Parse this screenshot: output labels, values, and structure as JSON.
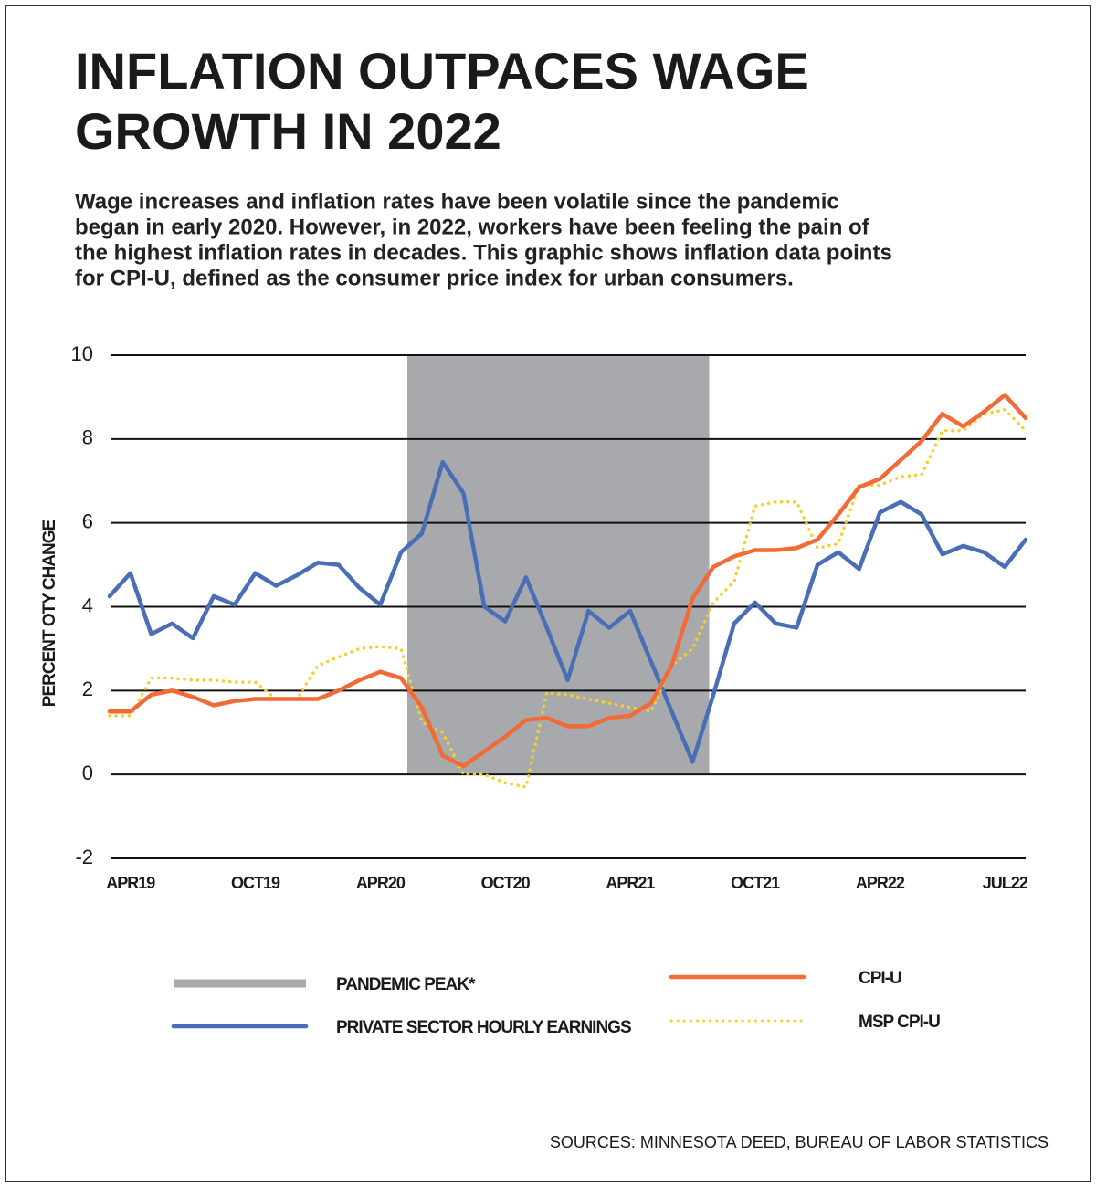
{
  "title": [
    "INFLATION OUTPACES WAGE",
    "GROWTH IN 2022"
  ],
  "subtitle": [
    "Wage increases and inflation rates have been volatile since the pandemic",
    "began in early 2020. However, in 2022, workers have been feeling the pain of",
    "the highest inflation rates in decades. This graphic shows inflation data points",
    "for CPI-U, defined as the consumer price index for urban consumers."
  ],
  "source": "SOURCES: MINNESOTA DEED, BUREAU OF LABOR STATISTICS",
  "chart_data": {
    "type": "line",
    "y_label": "PERCENT OTY CHANGE",
    "categories": [
      null,
      "APR19",
      null,
      null,
      null,
      null,
      null,
      "OCT19",
      null,
      null,
      null,
      null,
      null,
      "APR20",
      null,
      null,
      null,
      null,
      null,
      "OCT20",
      null,
      null,
      null,
      null,
      null,
      "APR21",
      null,
      null,
      null,
      null,
      null,
      "OCT21",
      null,
      null,
      null,
      null,
      null,
      "APR22",
      null,
      null,
      null,
      null,
      null,
      "JUL22",
      null
    ],
    "band": {
      "name": "PANDEMIC PEAK*",
      "color": "#a7a9ac",
      "from": 14.3,
      "to": 28.8
    },
    "series": [
      {
        "name": "PRIVATE SECTOR HOURLY EARNINGS",
        "color": "#4a6eb5",
        "style": "solid",
        "values": [
          4.25,
          4.8,
          3.35,
          3.6,
          3.25,
          4.25,
          4.05,
          4.8,
          4.5,
          4.75,
          5.05,
          5.0,
          4.45,
          4.05,
          5.3,
          5.75,
          7.45,
          6.7,
          4.0,
          3.65,
          4.7,
          3.5,
          2.25,
          3.9,
          3.5,
          3.9,
          2.7,
          1.5,
          0.3,
          1.9,
          3.6,
          4.1,
          3.6,
          3.5,
          5.0,
          5.3,
          4.9,
          6.25,
          6.5,
          6.2,
          5.25,
          5.45,
          5.3,
          4.95,
          5.6
        ]
      },
      {
        "name": "MSP CPI-U",
        "color": "#f7cf2a",
        "style": "dotted",
        "values": [
          1.4,
          1.4,
          2.3,
          2.3,
          2.25,
          2.25,
          2.2,
          2.2,
          1.8,
          1.8,
          2.6,
          2.8,
          3.0,
          3.05,
          3.0,
          1.25,
          1.0,
          0.0,
          0.0,
          -0.2,
          -0.3,
          1.95,
          1.9,
          1.8,
          1.7,
          1.6,
          1.5,
          2.6,
          3.0,
          4.1,
          4.6,
          6.4,
          6.5,
          6.5,
          5.4,
          5.5,
          6.9,
          6.9,
          7.1,
          7.15,
          8.2,
          8.2,
          8.6,
          8.7,
          8.2
        ]
      },
      {
        "name": "CPI-U",
        "color": "#f26a36",
        "style": "solid",
        "values": [
          1.5,
          1.5,
          1.9,
          2.0,
          1.85,
          1.65,
          1.75,
          1.8,
          1.8,
          1.8,
          1.8,
          2.0,
          2.25,
          2.45,
          2.3,
          1.6,
          0.45,
          0.2,
          0.55,
          0.9,
          1.3,
          1.35,
          1.15,
          1.15,
          1.35,
          1.4,
          1.7,
          2.6,
          4.2,
          4.95,
          5.2,
          5.35,
          5.35,
          5.4,
          5.6,
          6.2,
          6.85,
          7.05,
          7.5,
          7.95,
          8.6,
          8.3,
          8.65,
          9.05,
          8.5
        ]
      }
    ],
    "ylim": [
      -2,
      10
    ],
    "yticks": [
      -2,
      0,
      2,
      4,
      6,
      8,
      10
    ],
    "grid": true
  }
}
